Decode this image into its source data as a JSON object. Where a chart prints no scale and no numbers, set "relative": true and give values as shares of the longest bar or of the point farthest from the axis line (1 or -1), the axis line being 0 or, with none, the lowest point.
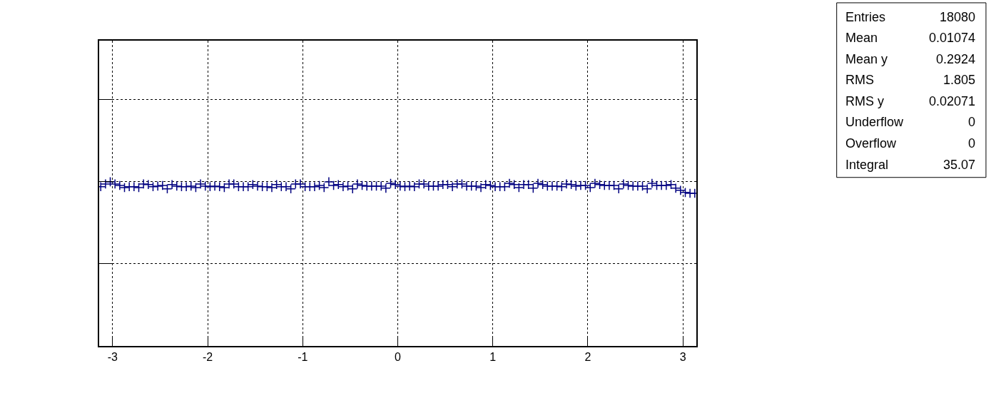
{
  "chart_data": {
    "type": "scatter",
    "relative": true,
    "marker": "cross",
    "grid": true,
    "tick_labels": "x",
    "xlim": [
      -3.1416,
      3.1416
    ],
    "xticks": [
      -3,
      -2,
      -1,
      0,
      1,
      2,
      3
    ],
    "annotations": [
      "Entries",
      "18080",
      "Mean",
      "0.01074",
      "Mean y",
      "0.2924",
      "RMS",
      "1.805",
      "RMS y",
      "0.02071",
      "Underflow",
      "0",
      "Overflow",
      "0",
      "Integral",
      "35.07"
    ],
    "series": [
      {
        "color": "#000080",
        "x": [
          -3.125,
          -3.075,
          -3.025,
          -2.975,
          -2.925,
          -2.875,
          -2.825,
          -2.775,
          -2.725,
          -2.675,
          -2.625,
          -2.575,
          -2.525,
          -2.475,
          -2.425,
          -2.375,
          -2.325,
          -2.275,
          -2.225,
          -2.175,
          -2.125,
          -2.075,
          -2.025,
          -1.975,
          -1.925,
          -1.875,
          -1.825,
          -1.775,
          -1.725,
          -1.675,
          -1.625,
          -1.575,
          -1.525,
          -1.475,
          -1.425,
          -1.375,
          -1.325,
          -1.275,
          -1.225,
          -1.175,
          -1.125,
          -1.075,
          -1.025,
          -0.975,
          -0.925,
          -0.875,
          -0.825,
          -0.775,
          -0.725,
          -0.675,
          -0.625,
          -0.575,
          -0.525,
          -0.475,
          -0.425,
          -0.375,
          -0.325,
          -0.275,
          -0.225,
          -0.175,
          -0.125,
          -0.075,
          -0.025,
          0.025,
          0.075,
          0.125,
          0.175,
          0.225,
          0.275,
          0.325,
          0.375,
          0.425,
          0.475,
          0.525,
          0.575,
          0.625,
          0.675,
          0.725,
          0.775,
          0.825,
          0.875,
          0.925,
          0.975,
          1.025,
          1.075,
          1.125,
          1.175,
          1.225,
          1.275,
          1.325,
          1.375,
          1.425,
          1.475,
          1.525,
          1.575,
          1.625,
          1.675,
          1.725,
          1.775,
          1.825,
          1.875,
          1.925,
          1.975,
          2.025,
          2.075,
          2.125,
          2.175,
          2.225,
          2.275,
          2.325,
          2.375,
          2.425,
          2.475,
          2.525,
          2.575,
          2.625,
          2.675,
          2.725,
          2.775,
          2.825,
          2.875,
          2.925,
          2.975,
          3.025,
          3.075,
          3.125
        ],
        "values": [
          0.97,
          0.987,
          1.0,
          0.987,
          0.978,
          0.965,
          0.97,
          0.97,
          0.965,
          0.987,
          0.983,
          0.97,
          0.974,
          0.978,
          0.957,
          0.983,
          0.974,
          0.97,
          0.97,
          0.974,
          0.965,
          0.987,
          0.974,
          0.97,
          0.974,
          0.97,
          0.965,
          0.987,
          0.987,
          0.97,
          0.97,
          0.97,
          0.983,
          0.974,
          0.97,
          0.97,
          0.965,
          0.983,
          0.97,
          0.97,
          0.957,
          0.987,
          0.987,
          0.97,
          0.97,
          0.97,
          0.978,
          0.965,
          1.0,
          0.978,
          0.983,
          0.97,
          0.974,
          0.957,
          0.987,
          0.978,
          0.974,
          0.974,
          0.974,
          0.974,
          0.961,
          0.991,
          0.983,
          0.974,
          0.97,
          0.974,
          0.97,
          0.987,
          0.987,
          0.974,
          0.974,
          0.974,
          0.983,
          0.983,
          0.97,
          0.987,
          0.987,
          0.974,
          0.974,
          0.974,
          0.965,
          0.983,
          0.978,
          0.97,
          0.97,
          0.97,
          0.991,
          0.983,
          0.965,
          0.983,
          0.983,
          0.961,
          0.991,
          0.983,
          0.974,
          0.974,
          0.974,
          0.97,
          0.987,
          0.983,
          0.974,
          0.978,
          0.978,
          0.965,
          0.991,
          0.983,
          0.978,
          0.978,
          0.978,
          0.957,
          0.987,
          0.978,
          0.974,
          0.974,
          0.974,
          0.957,
          0.991,
          0.978,
          0.978,
          0.978,
          0.983,
          0.961,
          0.948,
          0.935,
          0.93,
          0.93
        ]
      }
    ]
  }
}
